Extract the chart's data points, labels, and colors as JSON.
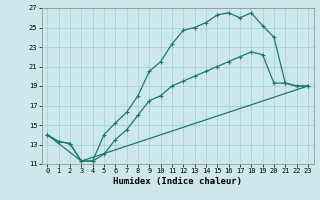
{
  "xlabel": "Humidex (Indice chaleur)",
  "bg_color": "#cce8ea",
  "grid_color": "#aacfd3",
  "line_color": "#1a7a6a",
  "xlim": [
    -0.5,
    23.5
  ],
  "ylim": [
    11,
    27
  ],
  "xticks": [
    0,
    1,
    2,
    3,
    4,
    5,
    6,
    7,
    8,
    9,
    10,
    11,
    12,
    13,
    14,
    15,
    16,
    17,
    18,
    19,
    20,
    21,
    22,
    23
  ],
  "yticks": [
    11,
    13,
    15,
    17,
    19,
    21,
    23,
    25,
    27
  ],
  "line1_x": [
    0,
    1,
    2,
    3,
    4,
    5,
    6,
    7,
    8,
    9,
    10,
    11,
    12,
    13,
    14,
    15,
    16,
    17,
    18,
    19,
    20,
    21,
    22,
    23
  ],
  "line1_y": [
    14.0,
    13.3,
    13.1,
    11.3,
    11.3,
    14.0,
    15.2,
    16.3,
    18.0,
    20.5,
    21.5,
    23.3,
    24.7,
    25.0,
    25.5,
    26.3,
    26.5,
    26.0,
    26.5,
    25.2,
    24.0,
    19.3,
    19.0,
    19.0
  ],
  "line2_x": [
    0,
    1,
    2,
    3,
    4,
    5,
    6,
    7,
    8,
    9,
    10,
    11,
    12,
    13,
    14,
    15,
    16,
    17,
    18,
    19,
    20,
    21,
    22,
    23
  ],
  "line2_y": [
    14.0,
    13.3,
    13.1,
    11.3,
    11.3,
    12.0,
    13.5,
    14.5,
    16.0,
    17.5,
    18.0,
    19.0,
    19.5,
    20.0,
    20.5,
    21.0,
    21.5,
    22.0,
    22.5,
    22.2,
    19.3,
    19.3,
    19.0,
    19.0
  ],
  "line3_x": [
    0,
    3,
    23
  ],
  "line3_y": [
    14.0,
    11.3,
    19.0
  ],
  "marker_size": 2.5,
  "line_width": 0.9,
  "tick_fontsize": 5.0,
  "xlabel_fontsize": 6.5
}
